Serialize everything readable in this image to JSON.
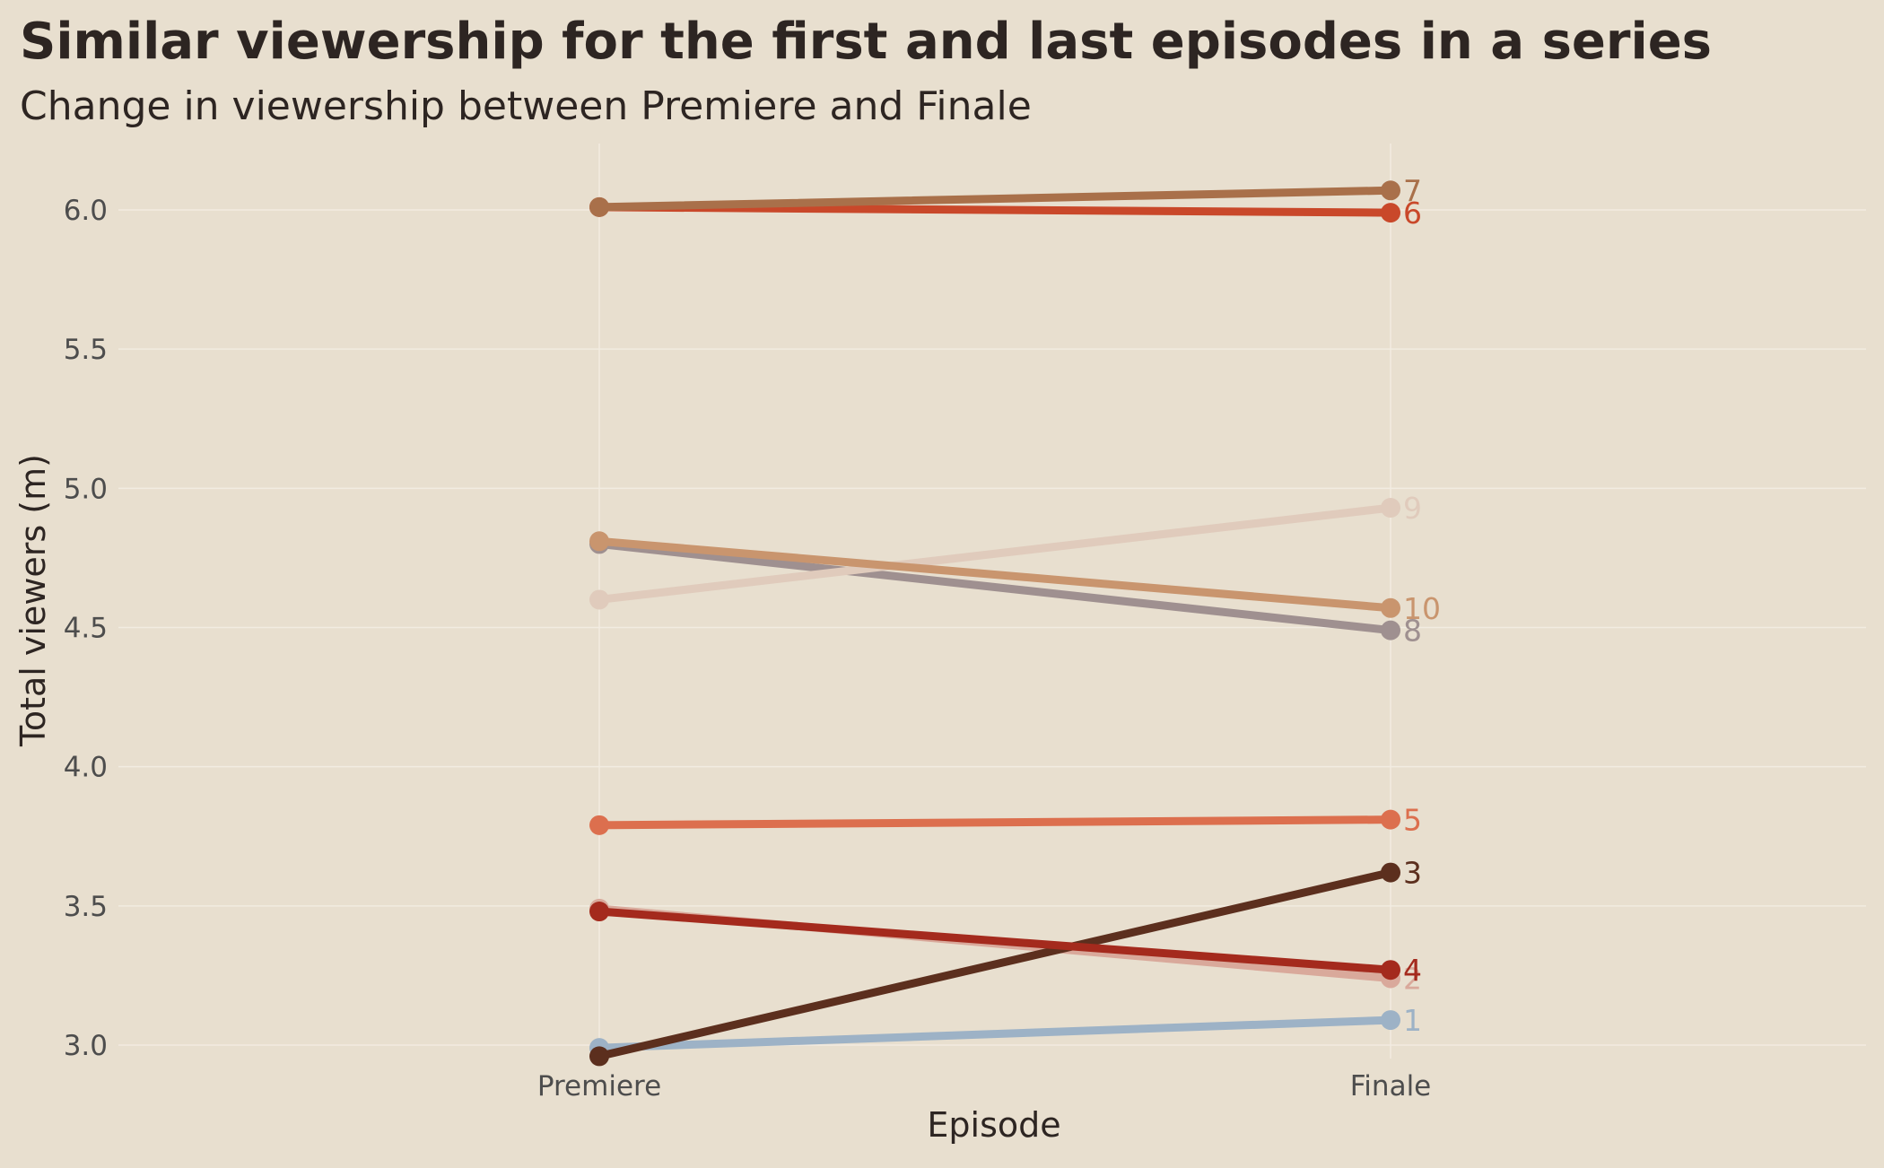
{
  "chart_data": {
    "type": "line",
    "title": "Similar viewership for the first and last episodes in a series",
    "subtitle": "Change in viewership between Premiere and Finale",
    "xlabel": "Episode",
    "ylabel": "Total viewers (m)",
    "categories": [
      "Premiere",
      "Finale"
    ],
    "ylim": [
      2.95,
      6.2
    ],
    "yticks": [
      "3.0",
      "3.5",
      "4.0",
      "4.5",
      "5.0",
      "5.5",
      "6.0"
    ],
    "grid": true,
    "legend": "direct labels at line ends",
    "series": [
      {
        "name": "1",
        "values": [
          2.99,
          3.09
        ],
        "color": "#9db2c6"
      },
      {
        "name": "2",
        "values": [
          3.49,
          3.24
        ],
        "color": "#d9a99b"
      },
      {
        "name": "3",
        "values": [
          2.96,
          3.62
        ],
        "color": "#5c2f1e"
      },
      {
        "name": "4",
        "values": [
          3.48,
          3.27
        ],
        "color": "#a42a1d"
      },
      {
        "name": "5",
        "values": [
          3.79,
          3.81
        ],
        "color": "#dc6f4e"
      },
      {
        "name": "6",
        "values": [
          6.01,
          5.99
        ],
        "color": "#c9482a"
      },
      {
        "name": "7",
        "values": [
          6.01,
          6.07
        ],
        "color": "#a9704a"
      },
      {
        "name": "8",
        "values": [
          4.8,
          4.49
        ],
        "color": "#9f9090"
      },
      {
        "name": "9",
        "values": [
          4.6,
          4.93
        ],
        "color": "#e0cbbc"
      },
      {
        "name": "10",
        "values": [
          4.81,
          4.57
        ],
        "color": "#c9956e"
      }
    ]
  }
}
